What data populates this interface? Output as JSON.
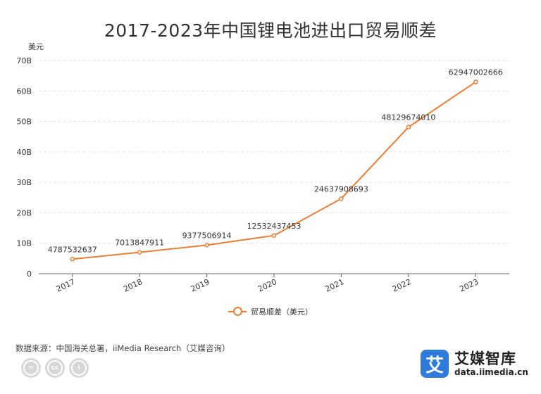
{
  "chart_data": {
    "type": "line",
    "title": "2017-2023年中国锂电池进出口贸易顺差",
    "unit_label": "美元",
    "categories": [
      "2017",
      "2018",
      "2019",
      "2020",
      "2021",
      "2022",
      "2023"
    ],
    "series": [
      {
        "name": "贸易顺差（美元）",
        "color": "#ed7d31",
        "values": [
          4787532637,
          7013847911,
          9377506914,
          12532437453,
          24637908693,
          48129674010,
          62947002666
        ],
        "labels": [
          "4787532637",
          "7013847911",
          "9377506914",
          "12532437453",
          "24637908693",
          "48129674010",
          "62947002666"
        ]
      }
    ],
    "ylim": [
      0,
      70000000000
    ],
    "yticks": [
      {
        "value": 0,
        "label": "0"
      },
      {
        "value": 10000000000,
        "label": "10B"
      },
      {
        "value": 20000000000,
        "label": "20B"
      },
      {
        "value": 30000000000,
        "label": "30B"
      },
      {
        "value": 40000000000,
        "label": "40B"
      },
      {
        "value": 50000000000,
        "label": "50B"
      },
      {
        "value": 60000000000,
        "label": "60B"
      },
      {
        "value": 70000000000,
        "label": "70B"
      }
    ],
    "grid": true,
    "legend_position": "bottom"
  },
  "footer": {
    "source": "数据来源：中国海关总署，iiMedia Research（艾媒咨询）",
    "cc_icons": [
      "equals-icon",
      "cc-icon",
      "person-icon"
    ],
    "cc_glyphs": [
      "=",
      "cc",
      "i"
    ],
    "brand_glyph": "艾",
    "brand_name": "艾媒智库",
    "brand_url": "data.iimedia.cn"
  }
}
